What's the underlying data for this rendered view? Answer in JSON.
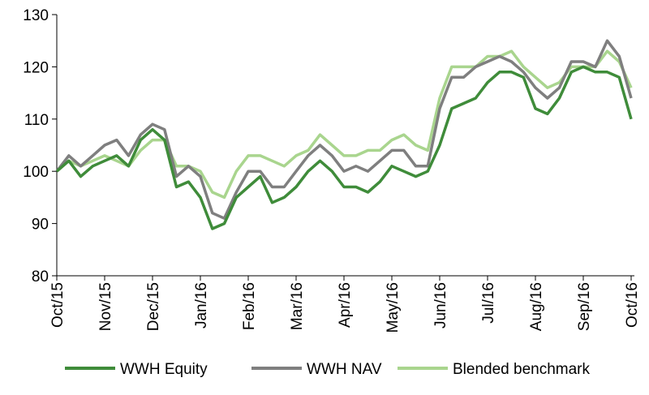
{
  "chart_data": {
    "type": "line",
    "categories": [
      "Oct/15",
      null,
      null,
      null,
      "Nov/15",
      null,
      null,
      null,
      "Dec/15",
      null,
      null,
      null,
      "Jan/16",
      null,
      null,
      null,
      "Feb/16",
      null,
      null,
      null,
      "Mar/16",
      null,
      null,
      null,
      "Apr/16",
      null,
      null,
      null,
      "May/16",
      null,
      null,
      null,
      "Jun/16",
      null,
      null,
      null,
      "Jul/16",
      null,
      null,
      null,
      "Aug/16",
      null,
      null,
      null,
      "Sep/16",
      null,
      null,
      null,
      "Oct/16"
    ],
    "series": [
      {
        "name": "WWH Equity",
        "color": "#3f8c3a",
        "values": [
          100,
          102,
          99,
          101,
          102,
          103,
          101,
          106,
          108,
          106,
          97,
          98,
          95,
          89,
          90,
          95,
          97,
          99,
          94,
          95,
          97,
          100,
          102,
          100,
          97,
          97,
          96,
          98,
          101,
          100,
          99,
          100,
          105,
          112,
          113,
          114,
          117,
          119,
          119,
          118,
          112,
          111,
          114,
          119,
          120,
          119,
          119,
          118,
          110
        ]
      },
      {
        "name": "WWH NAV",
        "color": "#7f7f7f",
        "values": [
          100,
          103,
          101,
          103,
          105,
          106,
          103,
          107,
          109,
          108,
          99,
          101,
          99,
          92,
          91,
          96,
          100,
          100,
          97,
          97,
          100,
          103,
          105,
          103,
          100,
          101,
          100,
          102,
          104,
          104,
          101,
          101,
          112,
          118,
          118,
          120,
          121,
          122,
          121,
          119,
          116,
          114,
          116,
          121,
          121,
          120,
          125,
          122,
          114
        ]
      },
      {
        "name": "Blended benchmark",
        "color": "#a9d58e",
        "values": [
          100,
          102,
          101,
          102,
          103,
          102,
          101,
          104,
          106,
          106,
          101,
          101,
          100,
          96,
          95,
          100,
          103,
          103,
          102,
          101,
          103,
          104,
          107,
          105,
          103,
          103,
          104,
          104,
          106,
          107,
          105,
          104,
          114,
          120,
          120,
          120,
          122,
          122,
          123,
          120,
          118,
          116,
          117,
          120,
          120,
          120,
          123,
          121,
          116
        ]
      }
    ],
    "ylim": [
      80,
      130
    ],
    "yticks": [
      80,
      90,
      100,
      110,
      120,
      130
    ],
    "grid": false,
    "legend": "bottom"
  }
}
